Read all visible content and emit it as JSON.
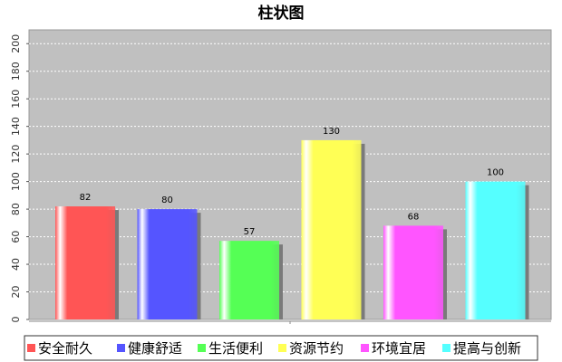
{
  "chart_data": {
    "type": "bar",
    "title": "柱状图",
    "categories": [
      "安全耐久",
      "健康舒适",
      "生活便利",
      "资源节约",
      "环境宜居",
      "提高与创新"
    ],
    "series": [
      {
        "values": [
          82,
          80,
          57,
          130,
          68,
          100
        ]
      }
    ],
    "colors": [
      "#ff5555",
      "#5555ff",
      "#55ff55",
      "#ffff55",
      "#ff55ff",
      "#55ffff"
    ],
    "y_ticks": [
      0,
      20,
      40,
      60,
      80,
      100,
      120,
      140,
      160,
      180,
      200
    ],
    "ylim": [
      0,
      210
    ],
    "grid": true,
    "legend_position": "bottom",
    "plot_background": "#c0c0c0"
  }
}
